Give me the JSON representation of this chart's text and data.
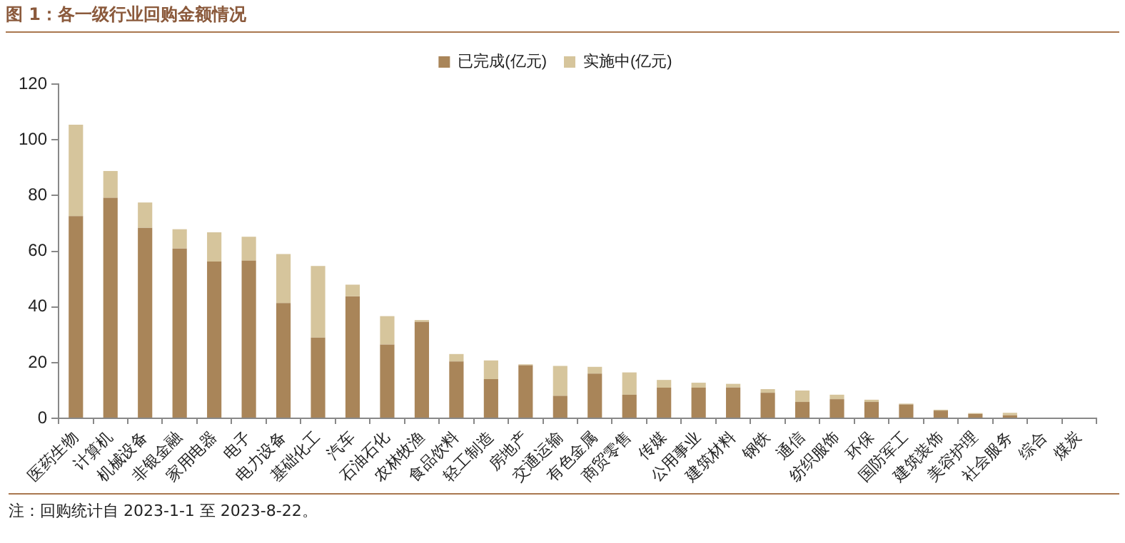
{
  "chart_data": {
    "type": "bar",
    "title": "图 1：各一级行业回购金额情况",
    "stacked": true,
    "categories": [
      "医药生物",
      "计算机",
      "机械设备",
      "非银金融",
      "家用电器",
      "电子",
      "电力设备",
      "基础化工",
      "汽车",
      "石油石化",
      "农林牧渔",
      "食品饮料",
      "轻工制造",
      "房地产",
      "交通运输",
      "有色金属",
      "商贸零售",
      "传媒",
      "公用事业",
      "建筑材料",
      "钢铁",
      "通信",
      "纺织服饰",
      "环保",
      "国防军工",
      "建筑装饰",
      "美容护理",
      "社会服务",
      "综合",
      "煤炭"
    ],
    "series": [
      {
        "name": "已完成(亿元)",
        "color": "#a98559",
        "values": [
          72.6,
          79.2,
          68.4,
          61.0,
          56.3,
          56.6,
          41.4,
          29.0,
          43.8,
          26.5,
          34.6,
          20.4,
          14.1,
          19.1,
          8.1,
          16.1,
          8.5,
          11.0,
          11.0,
          11.1,
          9.2,
          5.9,
          6.9,
          5.9,
          5.0,
          2.8,
          1.6,
          1.1,
          0,
          0
        ]
      },
      {
        "name": "实施中(亿元)",
        "color": "#d6c59c",
        "values": [
          32.8,
          9.6,
          9.1,
          6.9,
          10.5,
          8.6,
          17.6,
          25.7,
          4.2,
          10.2,
          0.7,
          2.7,
          6.7,
          0.3,
          10.7,
          2.4,
          8.0,
          2.8,
          1.8,
          1.3,
          1.3,
          4.1,
          1.6,
          0.8,
          0.3,
          0.3,
          0.3,
          0.9,
          0,
          0
        ]
      }
    ],
    "ylim": [
      0,
      120
    ],
    "yticks": [
      0,
      20,
      40,
      60,
      80,
      100,
      120
    ],
    "legend": "top",
    "grid": false,
    "annotations": [
      "注：回购统计自 2023-1-1 至 2023-8-22。"
    ]
  }
}
